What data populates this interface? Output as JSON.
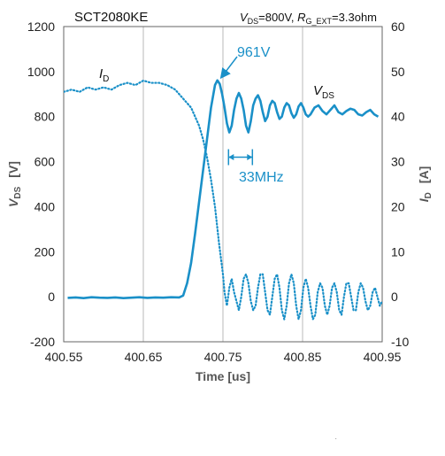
{
  "chart_data": {
    "type": "line",
    "title": "SCT2080KE",
    "conditions": {
      "vds_main": "V",
      "vds_sub": "DS",
      "vds_val": "=800V, ",
      "rg_main": "R",
      "rg_sub": "G_EXT",
      "rg_val": "=3.3ohm"
    },
    "xlabel": "Time [us]",
    "ylabel_left": {
      "main": "V",
      "sub": "DS",
      "unit": "[V]"
    },
    "ylabel_right": {
      "main": "I",
      "sub": "D",
      "unit": "[A]"
    },
    "xlim": [
      400.55,
      400.95
    ],
    "ylim_left": [
      -200,
      1200
    ],
    "ylim_right": [
      -10,
      60
    ],
    "x_ticks": [
      "400.55",
      "400.65",
      "400.75",
      "400.85",
      "400.95"
    ],
    "y_left_ticks": [
      "-200",
      "0",
      "200",
      "400",
      "600",
      "800",
      "1000",
      "1200"
    ],
    "y_right_ticks": [
      "-10",
      "0",
      "10",
      "20",
      "30",
      "40",
      "50",
      "60"
    ],
    "grid": "vertical",
    "colors": {
      "vds": "#1a90c8",
      "id": "#1a90c8",
      "annotation": "#1a90c8",
      "grid": "#b8b8b8"
    },
    "series": [
      {
        "name": "VDS",
        "axis": "left",
        "style": "solid",
        "label": {
          "main": "V",
          "sub": "DS"
        },
        "x": [
          400.555,
          400.565,
          400.575,
          400.585,
          400.595,
          400.605,
          400.615,
          400.625,
          400.635,
          400.645,
          400.655,
          400.665,
          400.675,
          400.685,
          400.695,
          400.7,
          400.705,
          400.71,
          400.715,
          400.72,
          400.725,
          400.73,
          400.735,
          400.74,
          400.743,
          400.746,
          400.749,
          400.752,
          400.755,
          400.758,
          400.761,
          400.764,
          400.767,
          400.77,
          400.773,
          400.776,
          400.779,
          400.782,
          400.785,
          400.788,
          400.791,
          400.794,
          400.797,
          400.8,
          400.803,
          400.806,
          400.809,
          400.812,
          400.815,
          400.818,
          400.821,
          400.824,
          400.827,
          400.83,
          400.833,
          400.836,
          400.839,
          400.842,
          400.845,
          400.848,
          400.851,
          400.854,
          400.857,
          400.86,
          400.865,
          400.87,
          400.875,
          400.88,
          400.885,
          400.89,
          400.895,
          400.9,
          400.905,
          400.91,
          400.915,
          400.92,
          400.925,
          400.93,
          400.935,
          400.94,
          400.945
        ],
        "y": [
          -5,
          -3,
          -6,
          -2,
          -4,
          -5,
          -3,
          -6,
          -4,
          -2,
          -5,
          -3,
          -4,
          -2,
          -3,
          5,
          60,
          150,
          280,
          420,
          560,
          700,
          840,
          940,
          961,
          945,
          900,
          840,
          770,
          730,
          760,
          830,
          880,
          905,
          880,
          830,
          760,
          730,
          780,
          850,
          880,
          895,
          870,
          820,
          780,
          800,
          850,
          870,
          860,
          820,
          790,
          800,
          840,
          860,
          850,
          815,
          795,
          810,
          845,
          860,
          840,
          810,
          800,
          810,
          840,
          850,
          825,
          810,
          830,
          850,
          820,
          810,
          825,
          835,
          830,
          810,
          805,
          820,
          830,
          810,
          800
        ]
      },
      {
        "name": "ID",
        "axis": "right",
        "style": "dotted",
        "label": {
          "main": "I",
          "sub": "D"
        },
        "x": [
          400.55,
          400.56,
          400.57,
          400.58,
          400.59,
          400.6,
          400.61,
          400.62,
          400.63,
          400.64,
          400.65,
          400.66,
          400.67,
          400.68,
          400.69,
          400.7,
          400.71,
          400.715,
          400.72,
          400.725,
          400.73,
          400.735,
          400.74,
          400.745,
          400.75,
          400.752,
          400.755,
          400.758,
          400.761,
          400.764,
          400.767,
          400.77,
          400.773,
          400.776,
          400.779,
          400.782,
          400.785,
          400.788,
          400.791,
          400.794,
          400.797,
          400.8,
          400.803,
          400.806,
          400.809,
          400.812,
          400.815,
          400.818,
          400.821,
          400.824,
          400.827,
          400.83,
          400.833,
          400.836,
          400.839,
          400.842,
          400.845,
          400.848,
          400.851,
          400.854,
          400.857,
          400.86,
          400.863,
          400.866,
          400.869,
          400.872,
          400.875,
          400.878,
          400.881,
          400.884,
          400.887,
          400.89,
          400.893,
          400.896,
          400.899,
          400.902,
          400.905,
          400.908,
          400.911,
          400.914,
          400.917,
          400.92,
          400.923,
          400.926,
          400.929,
          400.932,
          400.935,
          400.938,
          400.941,
          400.944,
          400.947,
          400.95
        ],
        "y": [
          45.5,
          46,
          45.5,
          46.5,
          46,
          46.5,
          46,
          47,
          47.5,
          47,
          48,
          47.5,
          47.5,
          47,
          46,
          44,
          42,
          40,
          38,
          35,
          31,
          26,
          20,
          12,
          5,
          1,
          -2,
          2,
          4,
          1,
          -1,
          -3,
          0,
          4,
          5,
          3,
          -1,
          -3,
          -2,
          2,
          5,
          5,
          1,
          -3,
          -4,
          0,
          4,
          5,
          2,
          -3,
          -5,
          -2,
          3,
          5,
          3,
          -2,
          -5,
          -3,
          2,
          4,
          2,
          -2,
          -5,
          -4,
          1,
          3,
          2,
          -2,
          -4,
          -2,
          2,
          3,
          1,
          -3,
          -4,
          0,
          3,
          3,
          0,
          -3,
          -3,
          1,
          3,
          2,
          -1,
          -3,
          -2,
          1,
          2,
          0,
          -2,
          -1
        ]
      }
    ],
    "annotations": {
      "peak_label": "961V",
      "peak_point": {
        "x": 400.744,
        "y": 961
      },
      "freq_label": "33MHz",
      "freq_span": {
        "x1": 400.757,
        "x2": 400.787,
        "y": 620
      }
    }
  }
}
